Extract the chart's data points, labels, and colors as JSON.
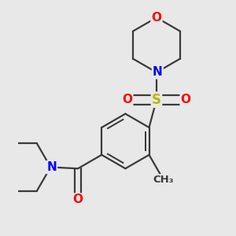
{
  "bg_color": "#e8e8e8",
  "bond_color": "#3a3a3a",
  "bond_width": 1.6,
  "atom_colors": {
    "O": "#ff0000",
    "N": "#0000ff",
    "S": "#b8b800",
    "C": "#3a3a3a"
  },
  "font_size": 11,
  "figsize": [
    3.0,
    3.0
  ],
  "dpi": 100
}
